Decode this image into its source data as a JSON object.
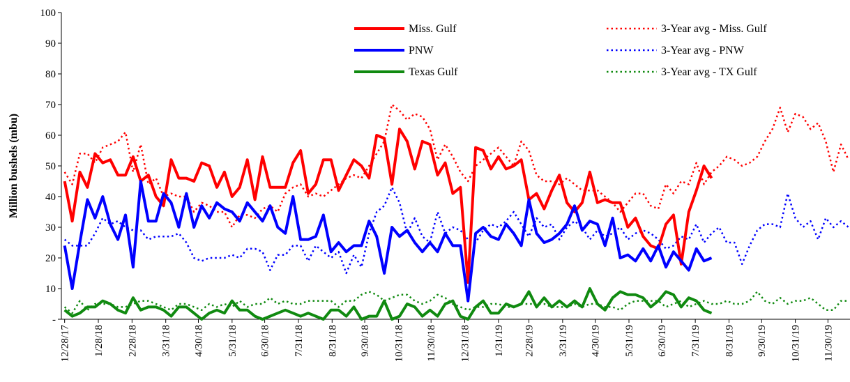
{
  "chart_data": {
    "type": "line",
    "y_label": "Million bushels (mbu)",
    "x": [
      "2017-12-28",
      "2018-01-04",
      "2018-01-11",
      "2018-01-18",
      "2018-01-25",
      "2018-02-01",
      "2018-02-08",
      "2018-02-15",
      "2018-02-22",
      "2018-03-01",
      "2018-03-08",
      "2018-03-15",
      "2018-03-22",
      "2018-03-29",
      "2018-04-05",
      "2018-04-12",
      "2018-04-19",
      "2018-04-26",
      "2018-05-03",
      "2018-05-10",
      "2018-05-17",
      "2018-05-24",
      "2018-05-31",
      "2018-06-07",
      "2018-06-14",
      "2018-06-21",
      "2018-06-28",
      "2018-07-05",
      "2018-07-12",
      "2018-07-19",
      "2018-07-26",
      "2018-08-02",
      "2018-08-09",
      "2018-08-16",
      "2018-08-23",
      "2018-08-30",
      "2018-09-06",
      "2018-09-13",
      "2018-09-20",
      "2018-09-27",
      "2018-10-04",
      "2018-10-11",
      "2018-10-18",
      "2018-10-25",
      "2018-11-01",
      "2018-11-08",
      "2018-11-15",
      "2018-11-22",
      "2018-11-29",
      "2018-12-06",
      "2018-12-13",
      "2018-12-20",
      "2018-12-27",
      "2019-01-03",
      "2019-01-10",
      "2019-01-17",
      "2019-01-24",
      "2019-01-31",
      "2019-02-07",
      "2019-02-14",
      "2019-02-21",
      "2019-02-28",
      "2019-03-07",
      "2019-03-14",
      "2019-03-21",
      "2019-03-28",
      "2019-04-04",
      "2019-04-11",
      "2019-04-18",
      "2019-04-25",
      "2019-05-02",
      "2019-05-09",
      "2019-05-16",
      "2019-05-23",
      "2019-05-30",
      "2019-06-06",
      "2019-06-13",
      "2019-06-20",
      "2019-06-27",
      "2019-07-04",
      "2019-07-11",
      "2019-07-18",
      "2019-07-25",
      "2019-08-01",
      "2019-08-08",
      "2019-08-15",
      "2019-08-22",
      "2019-08-29",
      "2019-09-05",
      "2019-09-12",
      "2019-09-19",
      "2019-09-26",
      "2019-10-03",
      "2019-10-10",
      "2019-10-17",
      "2019-10-24",
      "2019-10-31",
      "2019-11-07",
      "2019-11-14",
      "2019-11-21",
      "2019-11-28",
      "2019-12-05",
      "2019-12-12",
      "2019-12-19"
    ],
    "xlim": [
      "2017-12-25",
      "2019-12-19"
    ],
    "xticks": [
      {
        "value": "2017-12-28",
        "label": "12/28/17"
      },
      {
        "value": "2018-01-28",
        "label": "1/28/18"
      },
      {
        "value": "2018-02-28",
        "label": "2/28/18"
      },
      {
        "value": "2018-03-31",
        "label": "3/31/18"
      },
      {
        "value": "2018-04-30",
        "label": "4/30/18"
      },
      {
        "value": "2018-05-31",
        "label": "5/31/18"
      },
      {
        "value": "2018-06-30",
        "label": "6/30/18"
      },
      {
        "value": "2018-07-31",
        "label": "7/31/18"
      },
      {
        "value": "2018-08-31",
        "label": "8/31/18"
      },
      {
        "value": "2018-09-30",
        "label": "9/30/18"
      },
      {
        "value": "2018-10-31",
        "label": "10/31/18"
      },
      {
        "value": "2018-11-30",
        "label": "11/30/18"
      },
      {
        "value": "2018-12-31",
        "label": "12/31/18"
      },
      {
        "value": "2019-01-31",
        "label": "1/31/19"
      },
      {
        "value": "2019-02-28",
        "label": "2/28/19"
      },
      {
        "value": "2019-03-31",
        "label": "3/31/19"
      },
      {
        "value": "2019-04-30",
        "label": "4/30/19"
      },
      {
        "value": "2019-05-31",
        "label": "5/31/19"
      },
      {
        "value": "2019-06-30",
        "label": "6/30/19"
      },
      {
        "value": "2019-07-31",
        "label": "7/31/19"
      },
      {
        "value": "2019-08-31",
        "label": "8/31/19"
      },
      {
        "value": "2019-09-30",
        "label": "9/30/19"
      },
      {
        "value": "2019-10-31",
        "label": "10/31/19"
      },
      {
        "value": "2019-11-30",
        "label": "11/30/19"
      }
    ],
    "ylim": [
      0,
      100
    ],
    "yticks": [
      {
        "value": 0,
        "label": "-"
      },
      10,
      20,
      30,
      40,
      50,
      60,
      70,
      80,
      90,
      100
    ],
    "series": [
      {
        "name": "Miss. Gulf",
        "color": "#ff0000",
        "style": "solid",
        "values": [
          45,
          32,
          48,
          43,
          54,
          51,
          52,
          47,
          47,
          53,
          45,
          47,
          40,
          37,
          52,
          46,
          46,
          45,
          51,
          50,
          43,
          48,
          40,
          43,
          52,
          39,
          53,
          43,
          43,
          43,
          51,
          55,
          41,
          44,
          52,
          52,
          42,
          47,
          52,
          50,
          46,
          60,
          59,
          44,
          62,
          58,
          49,
          58,
          57,
          47,
          51,
          41,
          43,
          12,
          56,
          55,
          49,
          53,
          49,
          50,
          52,
          39,
          41,
          36,
          42,
          47,
          38,
          35,
          38,
          48,
          38,
          39,
          38,
          38,
          30,
          33,
          27,
          24,
          23,
          31,
          34,
          18,
          35,
          42,
          50,
          46,
          null,
          null,
          null,
          null,
          null,
          null,
          null,
          null,
          null,
          null,
          null,
          null,
          null,
          null,
          null,
          null,
          null,
          null
        ]
      },
      {
        "name": "PNW",
        "color": "#0000ff",
        "style": "solid",
        "values": [
          24,
          10,
          25,
          39,
          33,
          40,
          31,
          26,
          34,
          17,
          45,
          32,
          32,
          41,
          38,
          30,
          41,
          30,
          37,
          33,
          38,
          36,
          35,
          32,
          38,
          35,
          32,
          37,
          30,
          28,
          40,
          26,
          26,
          27,
          34,
          22,
          25,
          22,
          24,
          24,
          32,
          27,
          15,
          30,
          27,
          29,
          25,
          22,
          25,
          22,
          28,
          24,
          24,
          6,
          28,
          30,
          27,
          26,
          31,
          28,
          24,
          39,
          28,
          25,
          26,
          28,
          31,
          37,
          29,
          32,
          31,
          24,
          33,
          20,
          21,
          19,
          23,
          19,
          24,
          17,
          22,
          19,
          16,
          23,
          19,
          20,
          null,
          null,
          null,
          null,
          null,
          null,
          null,
          null,
          null,
          null,
          null,
          null,
          null,
          null,
          null,
          null,
          null,
          null
        ]
      },
      {
        "name": "Texas Gulf",
        "color": "#108a10",
        "style": "solid",
        "values": [
          3,
          1,
          2,
          4,
          4,
          6,
          5,
          3,
          2,
          7,
          3,
          4,
          4,
          3,
          1,
          4,
          4,
          2,
          0,
          2,
          3,
          2,
          6,
          3,
          3,
          1,
          0,
          1,
          2,
          3,
          2,
          1,
          2,
          1,
          0,
          3,
          3,
          1,
          4,
          0,
          1,
          1,
          6,
          0,
          1,
          5,
          4,
          1,
          3,
          1,
          5,
          6,
          1,
          0,
          4,
          6,
          2,
          2,
          5,
          4,
          5,
          9,
          4,
          7,
          4,
          6,
          4,
          6,
          4,
          10,
          5,
          3,
          7,
          9,
          8,
          8,
          7,
          4,
          6,
          9,
          8,
          4,
          7,
          6,
          3,
          2,
          null,
          null,
          null,
          null,
          null,
          null,
          null,
          null,
          null,
          null,
          null,
          null,
          null,
          null,
          null,
          null,
          null,
          null
        ]
      },
      {
        "name": "3-Year avg - Miss. Gulf",
        "color": "#ff0000",
        "style": "dotted",
        "values": [
          48,
          44,
          54,
          54,
          51,
          56,
          57,
          58,
          61,
          48,
          57,
          44,
          46,
          40,
          41,
          40,
          40,
          35,
          38,
          37,
          35,
          35,
          30,
          34,
          34,
          33,
          36,
          37,
          35,
          41,
          43,
          44,
          40,
          41,
          40,
          42,
          44,
          46,
          47,
          46,
          50,
          54,
          58,
          70,
          68,
          65,
          67,
          66,
          62,
          52,
          57,
          53,
          48,
          45,
          50,
          52,
          54,
          56,
          53,
          50,
          58,
          55,
          47,
          45,
          45,
          44,
          46,
          44,
          42,
          42,
          42,
          40,
          38,
          35,
          38,
          41,
          41,
          37,
          36,
          44,
          41,
          45,
          44,
          51,
          44,
          48,
          50,
          53,
          52,
          50,
          51,
          53,
          58,
          62,
          69,
          61,
          67,
          66,
          62,
          64,
          58,
          48,
          57,
          52
        ]
      },
      {
        "name": "3-Year avg - PNW",
        "color": "#0000ff",
        "style": "dotted",
        "values": [
          26,
          24,
          24,
          24,
          28,
          33,
          31,
          32,
          30,
          29,
          29,
          26,
          27,
          27,
          27,
          28,
          25,
          20,
          19,
          20,
          20,
          20,
          21,
          20,
          23,
          23,
          22,
          16,
          21,
          21,
          24,
          24,
          19,
          24,
          22,
          20,
          22,
          15,
          21,
          17,
          28,
          35,
          37,
          43,
          38,
          28,
          33,
          27,
          25,
          35,
          28,
          30,
          29,
          26,
          25,
          29,
          31,
          30,
          32,
          35,
          31,
          27,
          33,
          30,
          31,
          26,
          30,
          32,
          30,
          26,
          29,
          27,
          28,
          30,
          26,
          28,
          29,
          28,
          26,
          23,
          24,
          27,
          26,
          31,
          25,
          28,
          30,
          25,
          25,
          18,
          24,
          29,
          31,
          31,
          30,
          41,
          33,
          30,
          32,
          26,
          33,
          30,
          32,
          30
        ]
      },
      {
        "name": "3-Year avg - TX Gulf",
        "color": "#108a10",
        "style": "dotted",
        "values": [
          4,
          2,
          6,
          3,
          5,
          5,
          5,
          4,
          4,
          5,
          6,
          6,
          5,
          4,
          3,
          5,
          5,
          4,
          3,
          5,
          4,
          5,
          4,
          6,
          4,
          5,
          5,
          7,
          5,
          6,
          5,
          5,
          6,
          6,
          6,
          6,
          4,
          6,
          6,
          8,
          9,
          8,
          6,
          7,
          8,
          8,
          6,
          5,
          6,
          8,
          7,
          5,
          4,
          3,
          4,
          4,
          5,
          5,
          4,
          4,
          5,
          5,
          5,
          5,
          4,
          4,
          4,
          5,
          4,
          5,
          5,
          4,
          4,
          3,
          5,
          6,
          6,
          6,
          6,
          4,
          5,
          6,
          4,
          5,
          6,
          5,
          5,
          6,
          5,
          5,
          6,
          9,
          6,
          5,
          7,
          5,
          6,
          6,
          7,
          5,
          3,
          3,
          6,
          6
        ]
      }
    ]
  }
}
